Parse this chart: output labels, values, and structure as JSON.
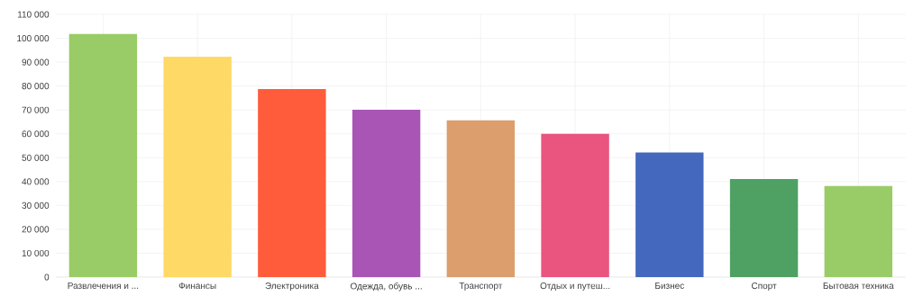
{
  "chart_data": {
    "type": "bar",
    "categories": [
      "Развлечения и ...",
      "Финансы",
      "Электроника",
      "Одежда, обувь ...",
      "Транспорт",
      "Отдых и путеш...",
      "Бизнес",
      "Спорт",
      "Бытовая техника"
    ],
    "values": [
      101800,
      92300,
      78700,
      70100,
      65600,
      60000,
      52200,
      41100,
      38100
    ],
    "colors": [
      "#99cc66",
      "#ffd966",
      "#ff5c3c",
      "#a855b5",
      "#dc9e6c",
      "#e9557f",
      "#4368bd",
      "#4ea163",
      "#99cc66"
    ],
    "ylim": [
      0,
      110000
    ],
    "yticks": [
      0,
      {
        "value": 10000,
        "label": "10 000"
      },
      {
        "value": 20000,
        "label": "20 000"
      },
      {
        "value": 30000,
        "label": "30 000"
      },
      {
        "value": 40000,
        "label": "40 000"
      },
      {
        "value": 50000,
        "label": "50 000"
      },
      {
        "value": 60000,
        "label": "60 000"
      },
      {
        "value": 70000,
        "label": "70 000"
      },
      {
        "value": 80000,
        "label": "80 000"
      },
      {
        "value": 90000,
        "label": "90 000"
      },
      {
        "value": 100000,
        "label": "100 000"
      },
      {
        "value": 110000,
        "label": "110 000"
      }
    ],
    "grid": true
  }
}
